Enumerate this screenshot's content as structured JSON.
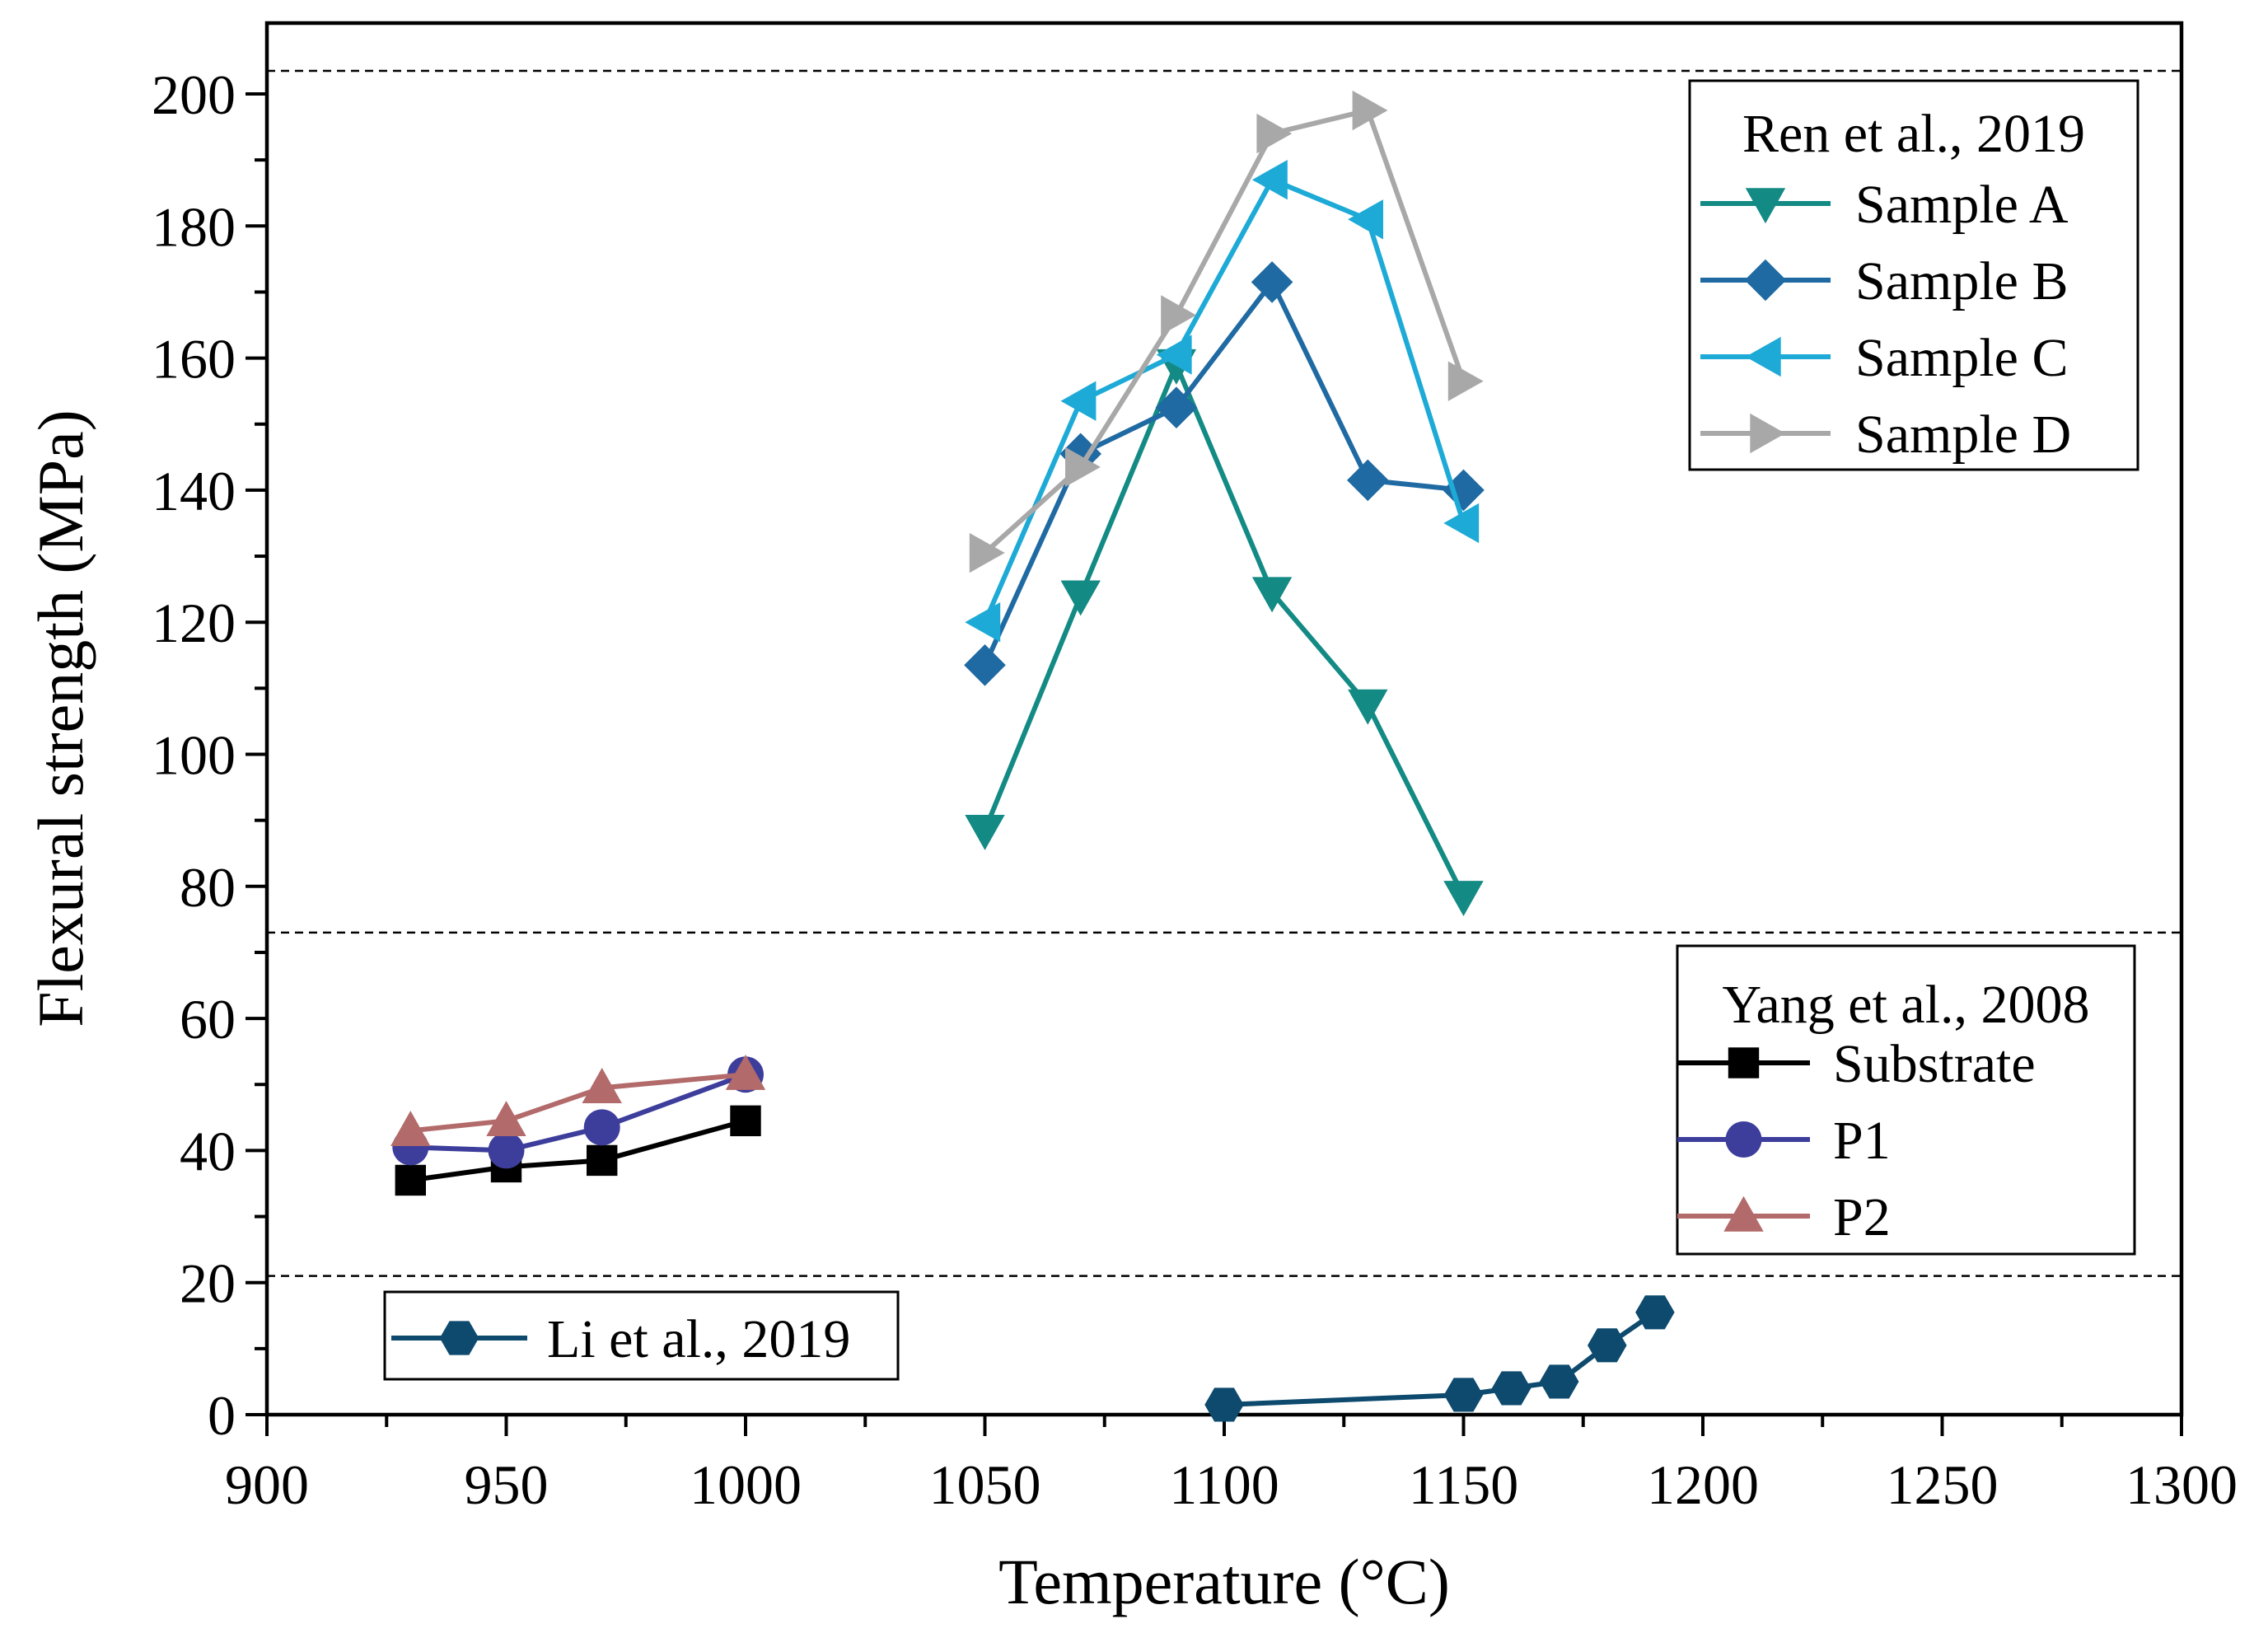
{
  "chart_data": {
    "type": "line",
    "title": "",
    "xlabel": "Temperature (°C)",
    "ylabel": "Flexural strength (MPa)",
    "xlim": [
      900,
      1300
    ],
    "ylim": [
      0,
      205
    ],
    "xticks": [
      900,
      950,
      1000,
      1050,
      1100,
      1150,
      1200,
      1250,
      1300
    ],
    "yticks": [
      0,
      20,
      40,
      60,
      80,
      100,
      120,
      140,
      160,
      180,
      200
    ],
    "grid": false,
    "reference_lines_y": [
      21,
      73,
      203.5
    ],
    "groups": [
      {
        "title": "Ren et al., 2019",
        "legend_position": "top-right",
        "series": [
          {
            "name": "Sample A",
            "marker": "triangle-down",
            "color": "#138a84",
            "points": [
              [
                1050,
                88.5
              ],
              [
                1070,
                124
              ],
              [
                1090,
                159
              ],
              [
                1110,
                124.5
              ],
              [
                1130,
                107.5
              ],
              [
                1150,
                78.5
              ]
            ]
          },
          {
            "name": "Sample B",
            "marker": "diamond",
            "color": "#1f6aa2",
            "points": [
              [
                1050,
                113.5
              ],
              [
                1070,
                145.5
              ],
              [
                1090,
                152.5
              ],
              [
                1110,
                171.5
              ],
              [
                1130,
                141.5
              ],
              [
                1150,
                140
              ]
            ]
          },
          {
            "name": "Sample C",
            "marker": "triangle-left",
            "color": "#1eaad6",
            "points": [
              [
                1050,
                120
              ],
              [
                1070,
                153.5
              ],
              [
                1090,
                160.5
              ],
              [
                1110,
                187
              ],
              [
                1130,
                181
              ],
              [
                1150,
                135
              ]
            ]
          },
          {
            "name": "Sample D",
            "marker": "triangle-right",
            "color": "#a8a8a8",
            "points": [
              [
                1050,
                130.5
              ],
              [
                1070,
                143.5
              ],
              [
                1090,
                166.5
              ],
              [
                1110,
                194
              ],
              [
                1130,
                197.5
              ],
              [
                1150,
                156.5
              ]
            ]
          }
        ]
      },
      {
        "title": "Yang et al., 2008",
        "legend_position": "middle-right",
        "series": [
          {
            "name": "Substrate",
            "marker": "square",
            "color": "#000000",
            "points": [
              [
                930,
                35.5
              ],
              [
                950,
                37.5
              ],
              [
                970,
                38.5
              ],
              [
                1000,
                44.5
              ]
            ]
          },
          {
            "name": "P1",
            "marker": "circle",
            "color": "#3d3d9c",
            "points": [
              [
                930,
                40.5
              ],
              [
                950,
                40
              ],
              [
                970,
                43.5
              ],
              [
                1000,
                51.5
              ]
            ]
          },
          {
            "name": "P2",
            "marker": "triangle-up",
            "color": "#b26a6a",
            "points": [
              [
                930,
                43
              ],
              [
                950,
                44.5
              ],
              [
                970,
                49.5
              ],
              [
                1000,
                51.5
              ]
            ]
          }
        ]
      },
      {
        "title": "",
        "legend_position": "bottom-left",
        "series": [
          {
            "name": "Li et al., 2019",
            "marker": "hexagon",
            "color": "#0d4a6e",
            "points": [
              [
                1100,
                1.5
              ],
              [
                1150,
                3
              ],
              [
                1160,
                4
              ],
              [
                1170,
                5
              ],
              [
                1180,
                10.5
              ],
              [
                1190,
                15.5
              ]
            ]
          }
        ]
      }
    ]
  }
}
